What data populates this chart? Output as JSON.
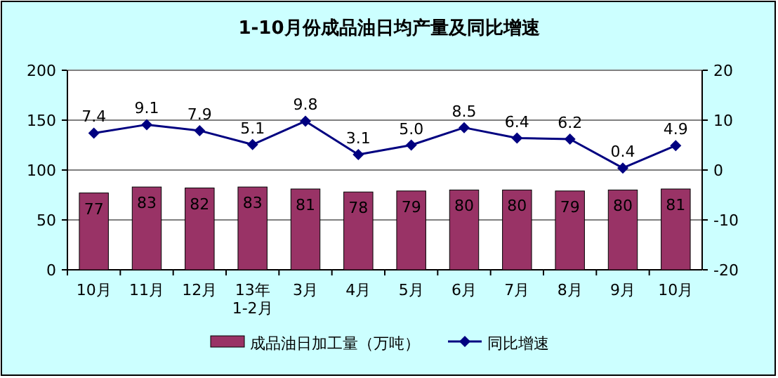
{
  "chart_data": {
    "type": "bar",
    "title": "1-10月份成品油日均产量及同比增速",
    "categories": [
      "10月",
      "11月",
      "12月",
      "13年\n1-2月",
      "3月",
      "4月",
      "5月",
      "6月",
      "7月",
      "8月",
      "9月",
      "10月"
    ],
    "series": [
      {
        "name": "成品油日加工量（万吨）",
        "color": "#993366",
        "values": [
          77,
          83,
          82,
          83,
          81,
          78,
          79,
          80,
          80,
          79,
          80,
          81
        ]
      },
      {
        "name": "同比增速",
        "type": "line",
        "axis": "y2",
        "color": "#000080",
        "marker": "diamond",
        "values": [
          7.4,
          9.1,
          7.9,
          5.1,
          9.8,
          3.1,
          5.0,
          8.5,
          6.4,
          6.2,
          0.4,
          4.9
        ],
        "value_labels": [
          "7.4",
          "9.1",
          "7.9",
          "5.1",
          "9.8",
          "3.1",
          "5.0",
          "8.5",
          "6.4",
          "6.2",
          "0.4",
          "4.9"
        ]
      }
    ],
    "ylim": [
      0,
      200
    ],
    "yticks": [
      0,
      50,
      100,
      150,
      200
    ],
    "y2lim": [
      -20,
      20
    ],
    "y2ticks": [
      -20,
      -10,
      0,
      10,
      20
    ],
    "grid": "y",
    "legend": "bottom",
    "data_labels": true
  }
}
